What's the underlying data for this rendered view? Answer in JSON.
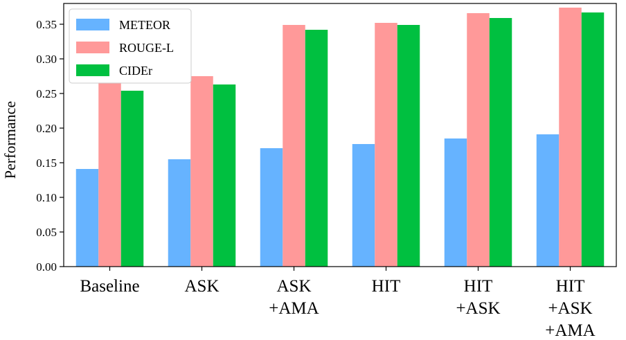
{
  "chart_data": {
    "type": "bar",
    "title": "",
    "xlabel": "",
    "ylabel": "Performance",
    "ylim": [
      0,
      0.38
    ],
    "yticks": [
      "0.00",
      "0.05",
      "0.10",
      "0.15",
      "0.20",
      "0.25",
      "0.30",
      "0.35"
    ],
    "ytick_values": [
      0,
      0.05,
      0.1,
      0.15,
      0.2,
      0.25,
      0.3,
      0.35
    ],
    "categories": [
      [
        "Baseline"
      ],
      [
        "ASK"
      ],
      [
        "ASK",
        "+AMA"
      ],
      [
        "HIT"
      ],
      [
        "HIT",
        "+ASK"
      ],
      [
        "HIT",
        "+ASK",
        "+AMA"
      ]
    ],
    "series": [
      {
        "name": "METEOR",
        "color": "#66b3ff",
        "values": [
          0.141,
          0.155,
          0.171,
          0.177,
          0.185,
          0.191
        ]
      },
      {
        "name": "ROUGE-L",
        "color": "#ff9999",
        "values": [
          0.266,
          0.275,
          0.349,
          0.352,
          0.366,
          0.374
        ]
      },
      {
        "name": "CIDEr",
        "color": "#00c040",
        "values": [
          0.254,
          0.263,
          0.342,
          0.349,
          0.359,
          0.367
        ]
      }
    ],
    "legend_position": "top-left",
    "grid": false
  }
}
